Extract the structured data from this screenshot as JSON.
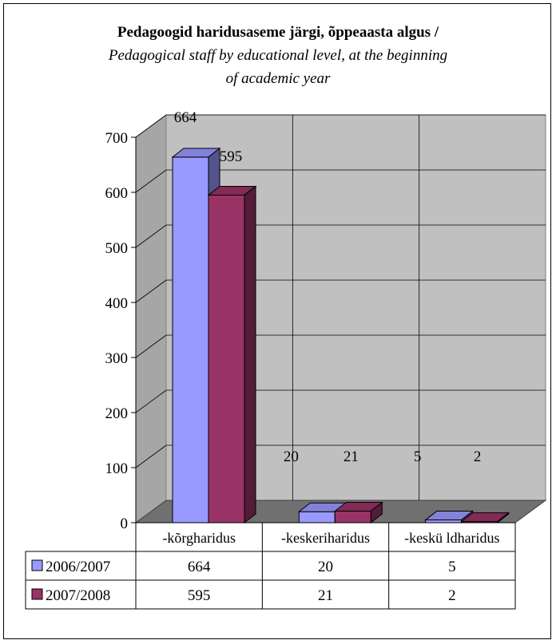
{
  "title": "Pedagoogid haridusaseme järgi, õppeaasta algus /",
  "subtitle_line1": "Pedagogical staff by educational level, at the beginning",
  "subtitle_line2": "of academic  year",
  "chart_data": {
    "type": "bar",
    "title": "Pedagoogid haridusaseme järgi, õppeaasta algus / Pedagogical staff by educational level, at the beginning of academic  year",
    "categories": [
      "-kõrgharidus",
      "-keskeriharidus",
      "-keskü ldharidus"
    ],
    "series": [
      {
        "name": "2006/2007",
        "values": [
          664,
          20,
          5
        ],
        "color": "#9999ff"
      },
      {
        "name": "2007/2008",
        "values": [
          595,
          21,
          2
        ],
        "color": "#993366"
      }
    ],
    "ylim": [
      0,
      700
    ],
    "yticks": [
      0,
      100,
      200,
      300,
      400,
      500,
      600,
      700
    ],
    "grid": true,
    "three_d": true,
    "legend": "data table below chart",
    "data_labels": true
  }
}
